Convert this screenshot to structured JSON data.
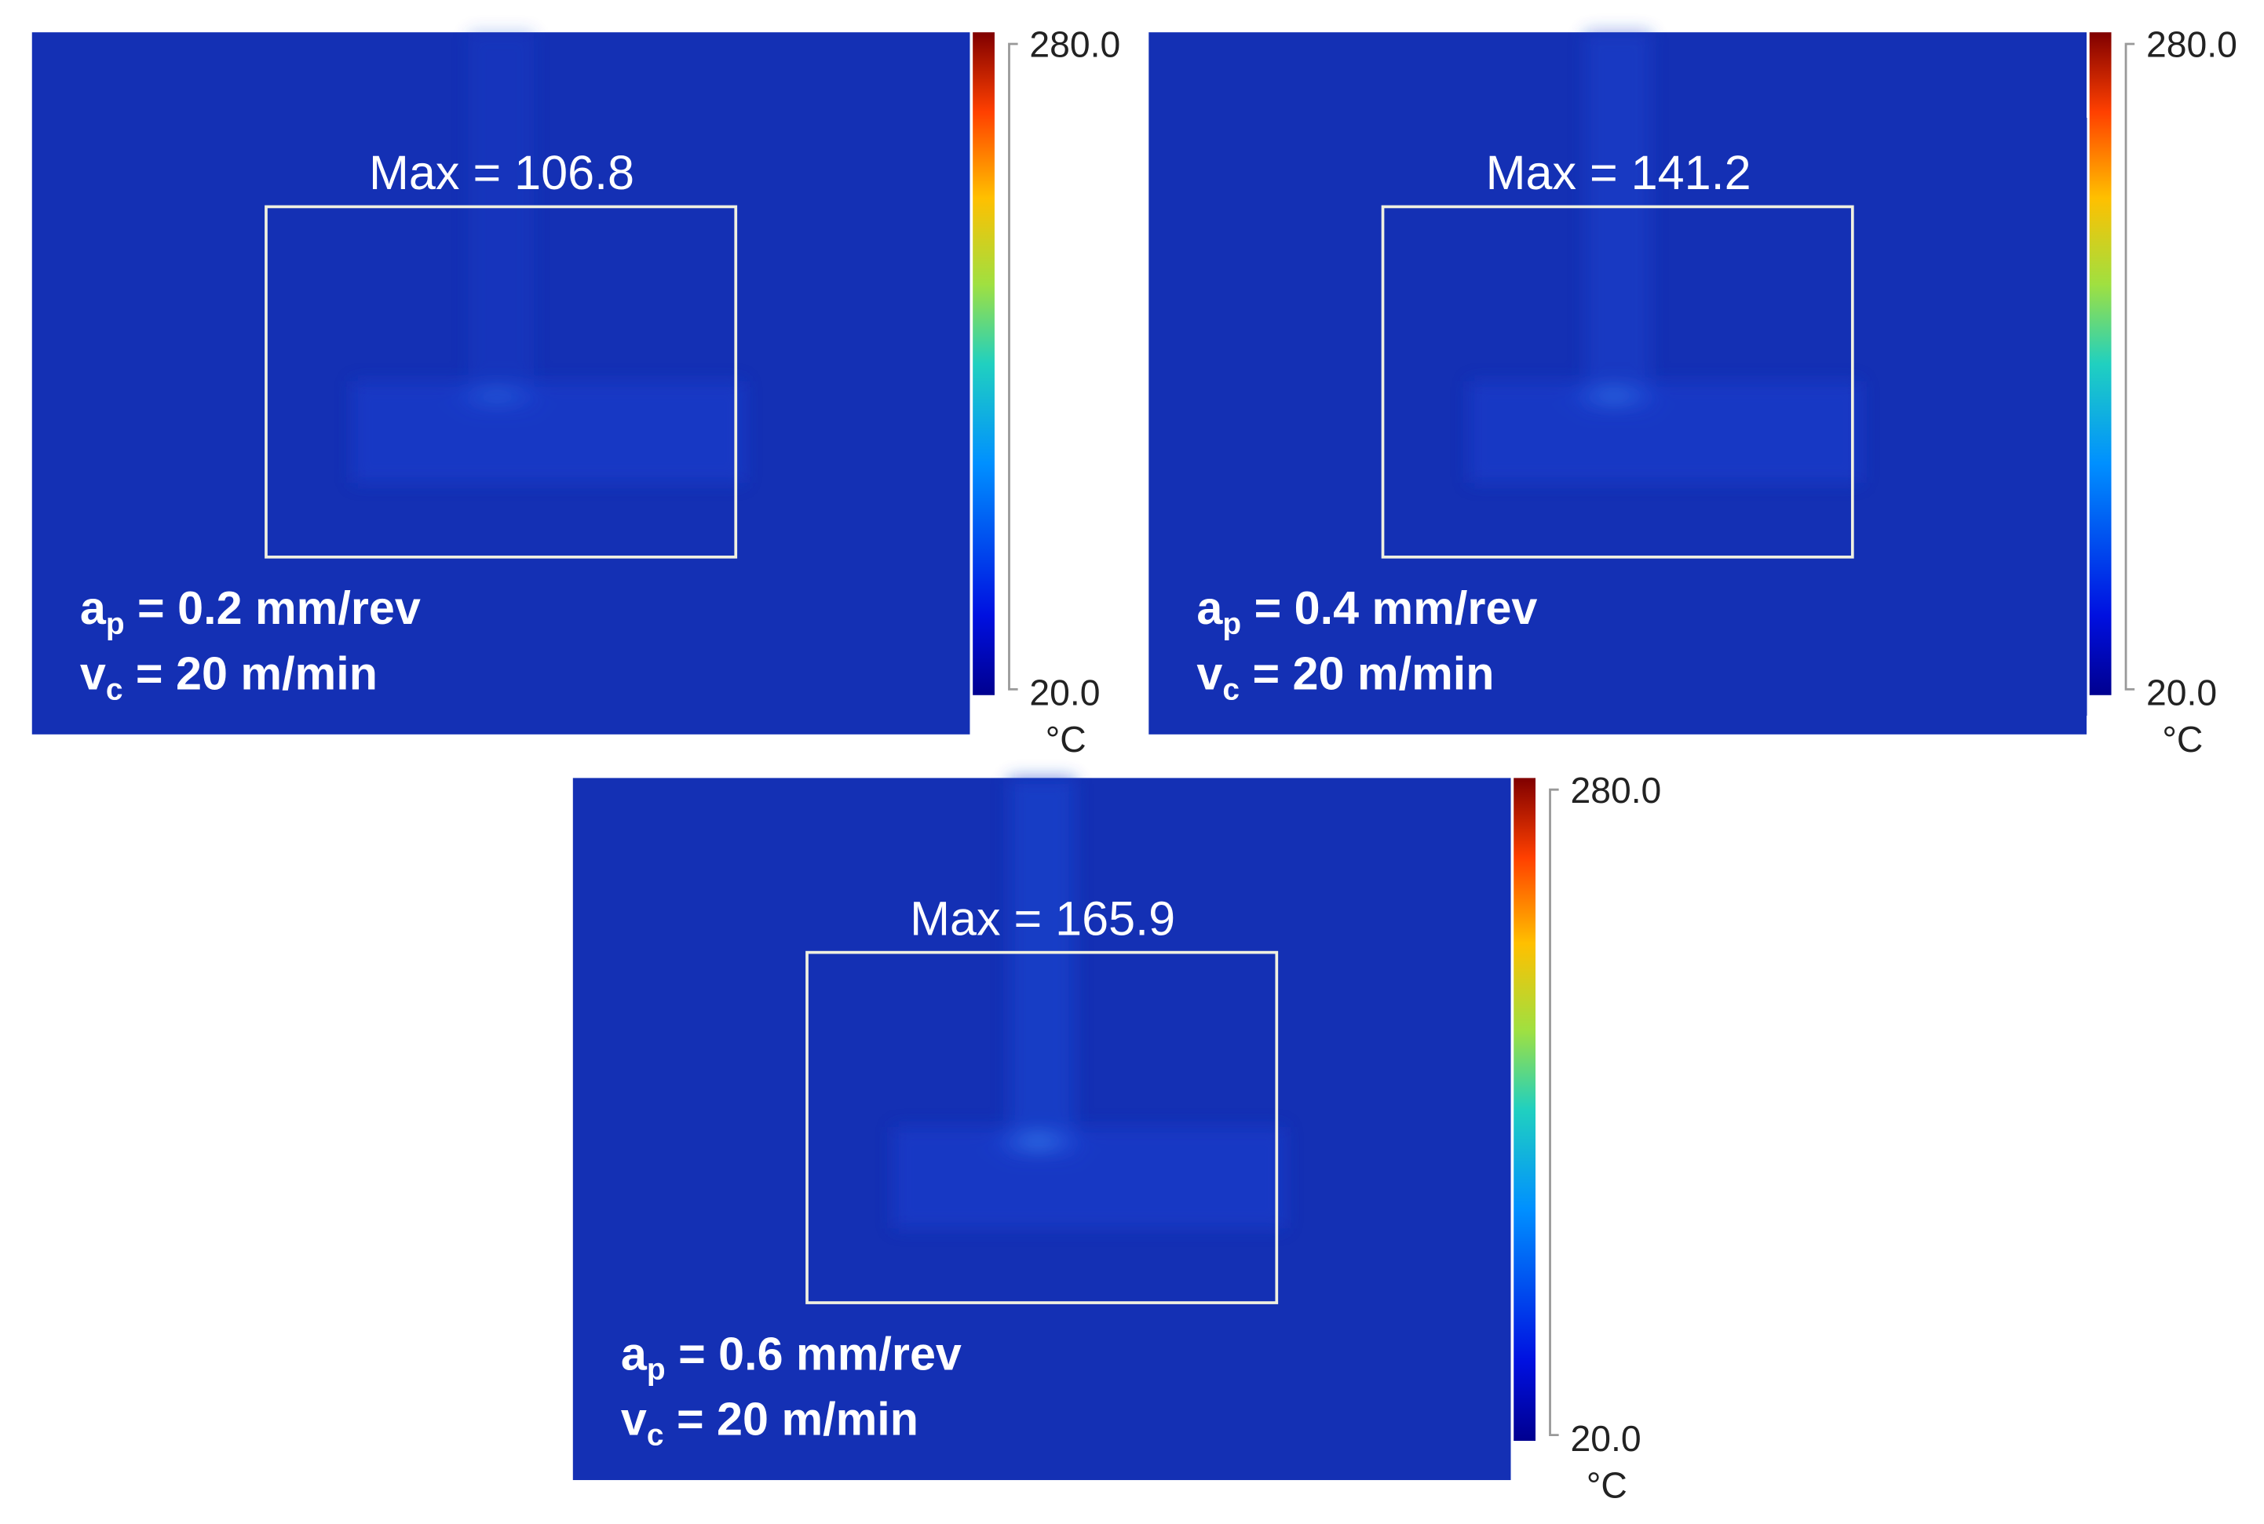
{
  "panels": [
    {
      "max_label": "Max = 106.8",
      "depth": {
        "symbol": "a",
        "subscript": "p",
        "text": " = 0.2 mm/rev"
      },
      "speed": {
        "symbol": "v",
        "subscript": "c",
        "text": " = 20 m/min"
      },
      "scale": {
        "top": "280.0",
        "bottom": "20.0",
        "unit": "°C"
      }
    },
    {
      "max_label": "Max = 141.2",
      "depth": {
        "symbol": "a",
        "subscript": "p",
        "text": " = 0.4 mm/rev"
      },
      "speed": {
        "symbol": "v",
        "subscript": "c",
        "text": " = 20 m/min"
      },
      "scale": {
        "top": "280.0",
        "bottom": "20.0",
        "unit": "°C"
      }
    },
    {
      "max_label": "Max = 165.9",
      "depth": {
        "symbol": "a",
        "subscript": "p",
        "text": " = 0.6 mm/rev"
      },
      "speed": {
        "symbol": "v",
        "subscript": "c",
        "text": " = 20 m/min"
      },
      "scale": {
        "top": "280.0",
        "bottom": "20.0",
        "unit": "°C"
      }
    }
  ]
}
